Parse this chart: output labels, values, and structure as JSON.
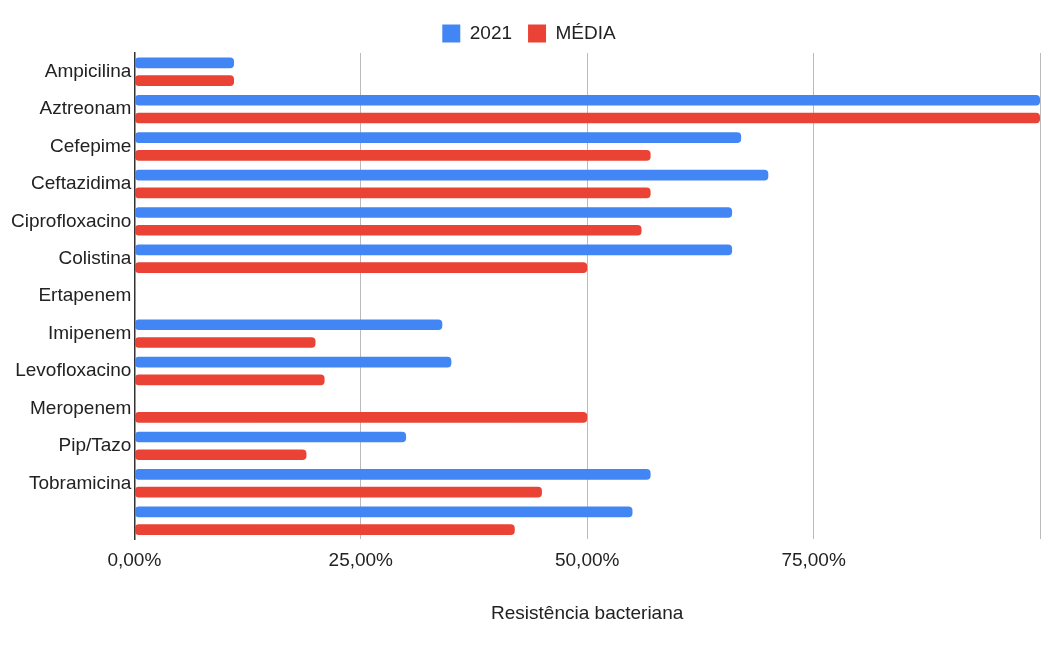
{
  "chart_data": {
    "type": "bar",
    "orientation": "horizontal",
    "xlabel": "Resistência bacteriana",
    "categories": [
      "Ampicilina",
      "Aztreonam",
      "Cefepime",
      "Ceftazidima",
      "Ciprofloxacino",
      "Colistina",
      "Ertapenem",
      "Imipenem",
      "Levofloxacino",
      "Meropenem",
      "Pip/Tazo",
      "Tobramicina",
      null
    ],
    "series": [
      {
        "name": "2021",
        "color": "#4285f4",
        "values": [
          11,
          100,
          67,
          70,
          66,
          66,
          null,
          34,
          35,
          null,
          30,
          57,
          55
        ]
      },
      {
        "name": "MÉDIA",
        "color": "#ea4335",
        "values": [
          11,
          100,
          57,
          57,
          56,
          50,
          null,
          20,
          21,
          50,
          19,
          45,
          42
        ]
      }
    ],
    "xlim": [
      0,
      100
    ],
    "xticks": [
      {
        "value": 0,
        "label": "0,00%"
      },
      {
        "value": 25,
        "label": "25,00%"
      },
      {
        "value": 50,
        "label": "50,00%"
      },
      {
        "value": 75,
        "label": "75,00%"
      },
      {
        "value": 100,
        "label": null
      }
    ],
    "grid": "x",
    "legend": "top"
  }
}
